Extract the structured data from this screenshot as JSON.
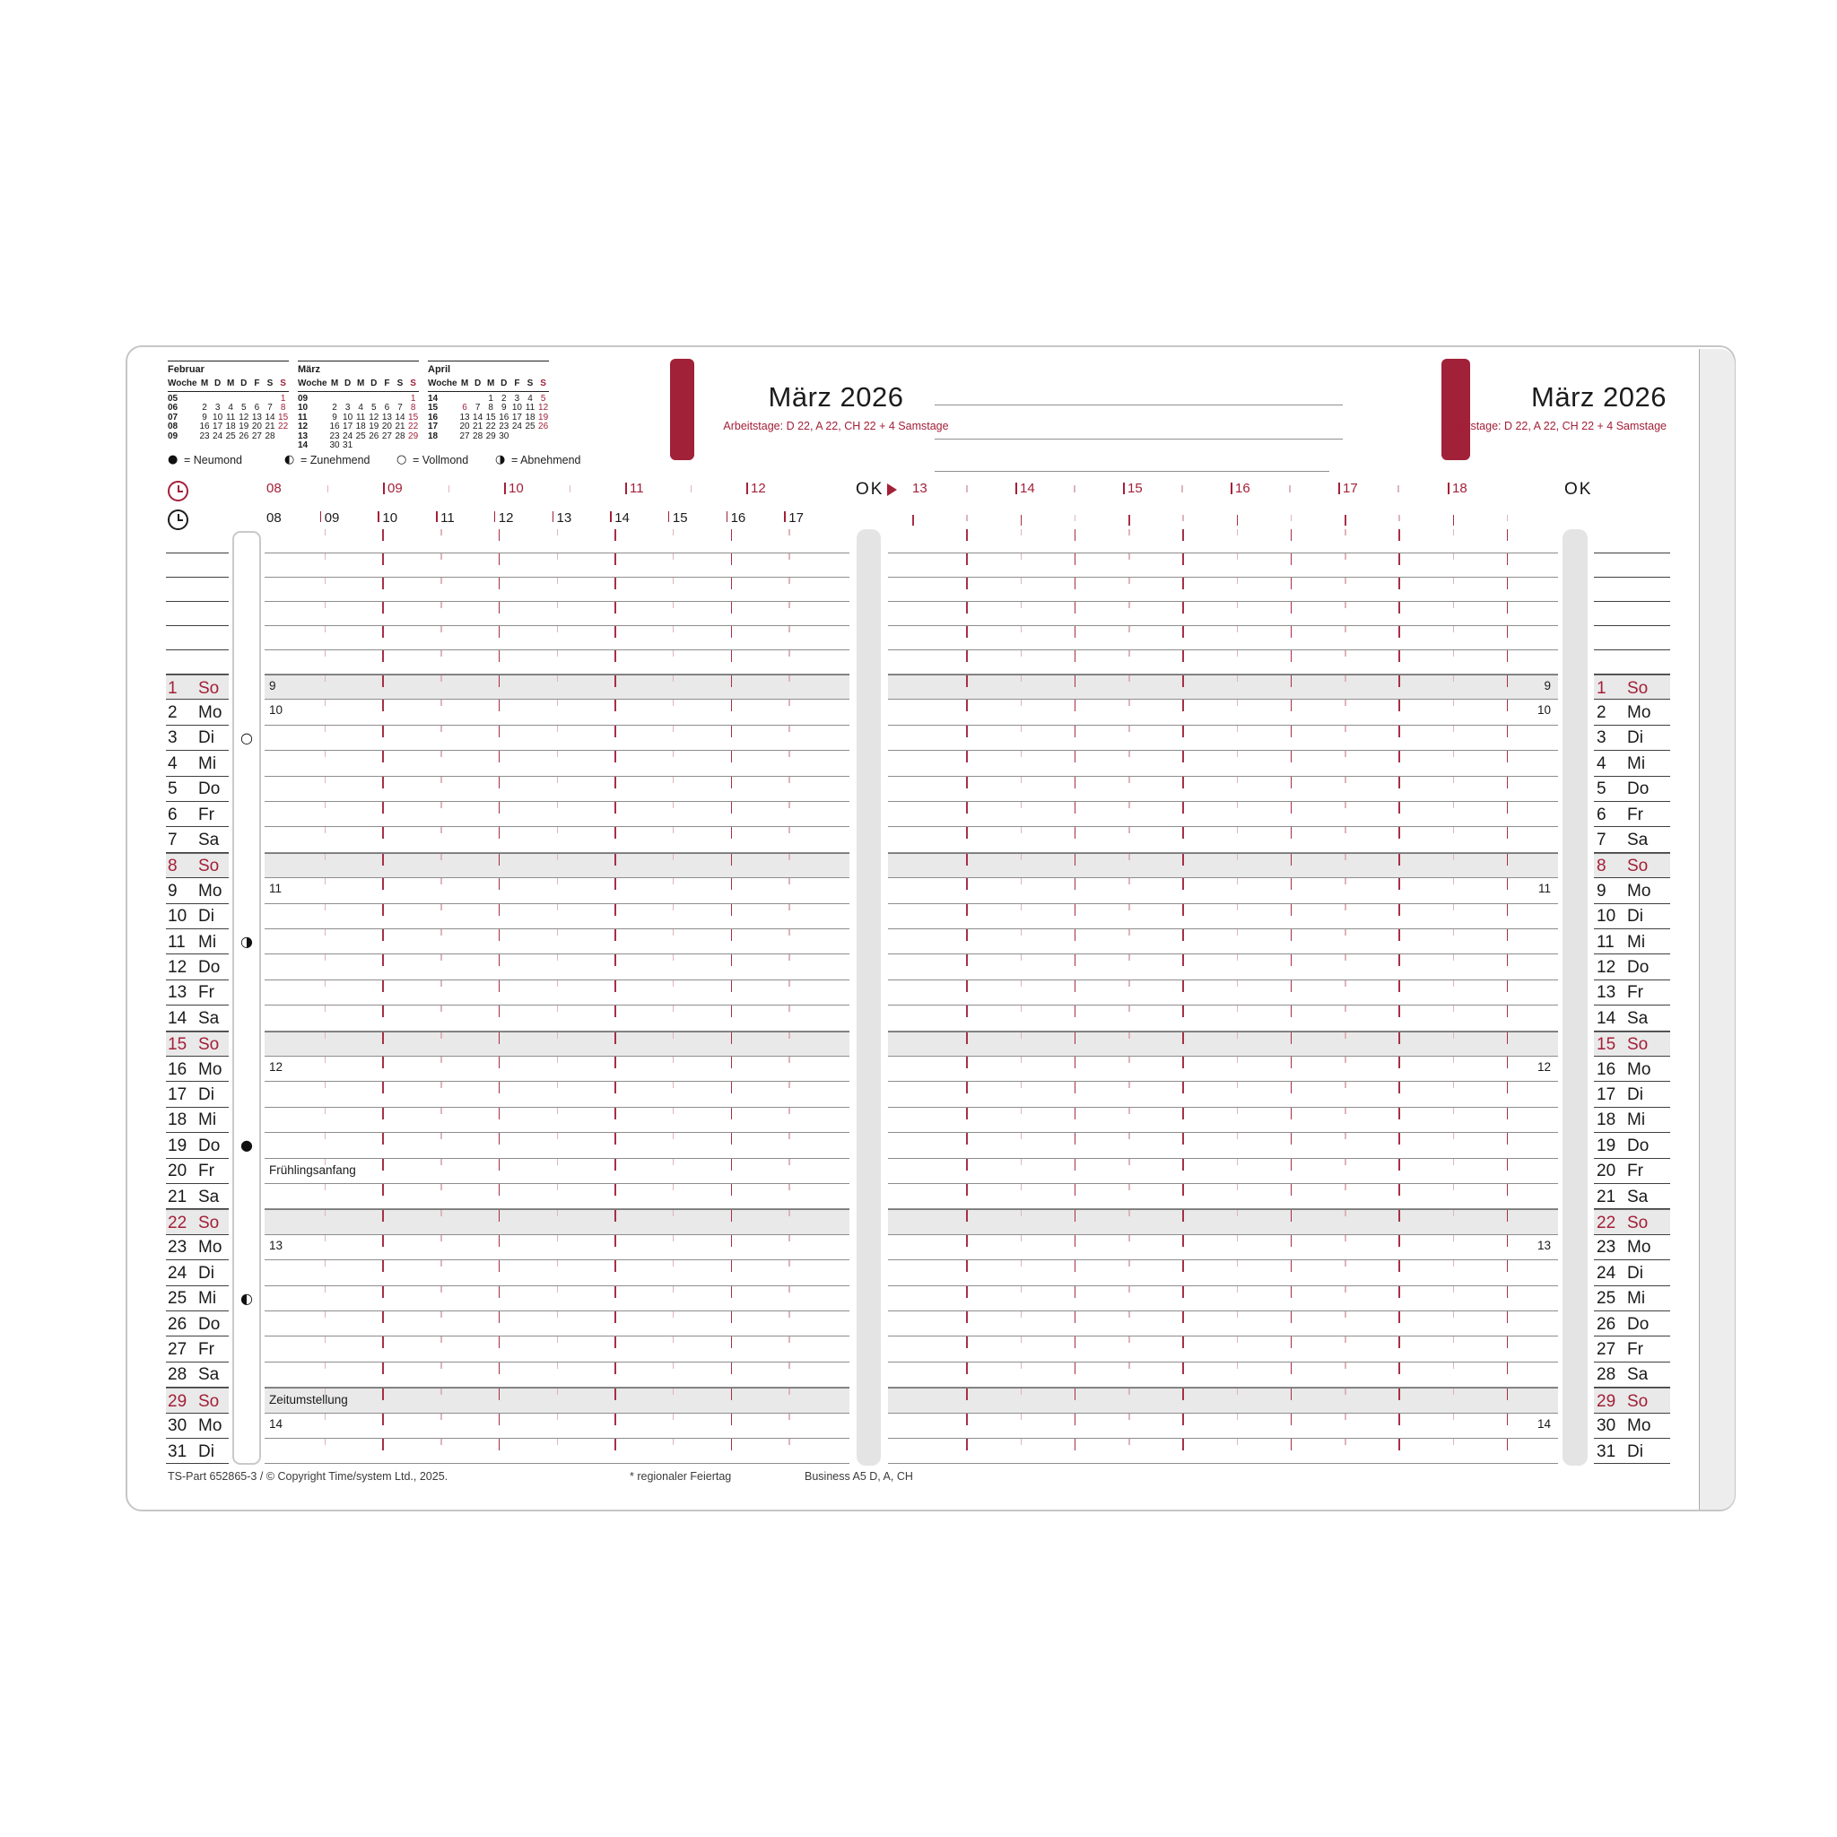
{
  "month_header": {
    "title": "März 2026",
    "subtitle": "Arbeitstage: D 22, A 22, CH 22 + 4 Samstage"
  },
  "mini_calendars": {
    "week_label": "Woche",
    "weekday_header": [
      "M",
      "D",
      "M",
      "D",
      "F",
      "S",
      "S"
    ],
    "months": [
      {
        "title": "Februar",
        "weeks": [
          {
            "num": "05",
            "days": [
              "",
              "",
              "",
              "",
              "",
              "",
              "1"
            ],
            "red": [
              6
            ]
          },
          {
            "num": "06",
            "days": [
              "2",
              "3",
              "4",
              "5",
              "6",
              "7",
              "8"
            ],
            "red": [
              6
            ]
          },
          {
            "num": "07",
            "days": [
              "9",
              "10",
              "11",
              "12",
              "13",
              "14",
              "15"
            ],
            "red": [
              6
            ]
          },
          {
            "num": "08",
            "days": [
              "16",
              "17",
              "18",
              "19",
              "20",
              "21",
              "22"
            ],
            "red": [
              6
            ]
          },
          {
            "num": "09",
            "days": [
              "23",
              "24",
              "25",
              "26",
              "27",
              "28",
              ""
            ],
            "red": []
          }
        ]
      },
      {
        "title": "März",
        "weeks": [
          {
            "num": "09",
            "days": [
              "",
              "",
              "",
              "",
              "",
              "",
              "1"
            ],
            "red": [
              6
            ]
          },
          {
            "num": "10",
            "days": [
              "2",
              "3",
              "4",
              "5",
              "6",
              "7",
              "8"
            ],
            "red": [
              6
            ]
          },
          {
            "num": "11",
            "days": [
              "9",
              "10",
              "11",
              "12",
              "13",
              "14",
              "15"
            ],
            "red": [
              6
            ]
          },
          {
            "num": "12",
            "days": [
              "16",
              "17",
              "18",
              "19",
              "20",
              "21",
              "22"
            ],
            "red": [
              6
            ]
          },
          {
            "num": "13",
            "days": [
              "23",
              "24",
              "25",
              "26",
              "27",
              "28",
              "29"
            ],
            "red": [
              6
            ]
          },
          {
            "num": "14",
            "days": [
              "30",
              "31",
              "",
              "",
              "",
              "",
              ""
            ],
            "red": []
          }
        ]
      },
      {
        "title": "April",
        "weeks": [
          {
            "num": "14",
            "days": [
              "",
              "",
              "1",
              "2",
              "3",
              "4",
              "5"
            ],
            "red": [
              6
            ]
          },
          {
            "num": "15",
            "days": [
              "6",
              "7",
              "8",
              "9",
              "10",
              "11",
              "12"
            ],
            "red": [
              0,
              6
            ]
          },
          {
            "num": "16",
            "days": [
              "13",
              "14",
              "15",
              "16",
              "17",
              "18",
              "19"
            ],
            "red": [
              6
            ]
          },
          {
            "num": "17",
            "days": [
              "20",
              "21",
              "22",
              "23",
              "24",
              "25",
              "26"
            ],
            "red": [
              6
            ]
          },
          {
            "num": "18",
            "days": [
              "27",
              "28",
              "29",
              "30",
              "",
              "",
              ""
            ],
            "red": []
          }
        ]
      }
    ]
  },
  "moon_legend": {
    "items": [
      {
        "symbol": "●",
        "label": "= Neumond"
      },
      {
        "symbol": "◐",
        "label": "= Zunehmend"
      },
      {
        "symbol": "○",
        "label": "= Vollmond"
      },
      {
        "symbol": "◑",
        "label": "= Abnehmend"
      }
    ]
  },
  "time_ruler": {
    "left_red_hours": [
      "08",
      "09",
      "10",
      "11",
      "12"
    ],
    "right_red_hours": [
      "13",
      "14",
      "15",
      "16",
      "17",
      "18"
    ],
    "black_hours": [
      "08",
      "09",
      "10",
      "11",
      "12",
      "13",
      "14",
      "15",
      "16",
      "17"
    ],
    "ok_label": "OK"
  },
  "calendar": {
    "moon_symbols": {
      "new": "●",
      "full": "○",
      "waxing": "◐",
      "waning": "◑"
    },
    "days": [
      {
        "date": 1,
        "day": "So",
        "sunday": true,
        "week": "9"
      },
      {
        "date": 2,
        "day": "Mo",
        "week": "10"
      },
      {
        "date": 3,
        "day": "Di",
        "moon": "full"
      },
      {
        "date": 4,
        "day": "Mi"
      },
      {
        "date": 5,
        "day": "Do"
      },
      {
        "date": 6,
        "day": "Fr"
      },
      {
        "date": 7,
        "day": "Sa"
      },
      {
        "date": 8,
        "day": "So",
        "sunday": true
      },
      {
        "date": 9,
        "day": "Mo",
        "week": "11"
      },
      {
        "date": 10,
        "day": "Di"
      },
      {
        "date": 11,
        "day": "Mi",
        "moon": "waning"
      },
      {
        "date": 12,
        "day": "Do"
      },
      {
        "date": 13,
        "day": "Fr"
      },
      {
        "date": 14,
        "day": "Sa"
      },
      {
        "date": 15,
        "day": "So",
        "sunday": true
      },
      {
        "date": 16,
        "day": "Mo",
        "week": "12"
      },
      {
        "date": 17,
        "day": "Di"
      },
      {
        "date": 18,
        "day": "Mi"
      },
      {
        "date": 19,
        "day": "Do",
        "moon": "new"
      },
      {
        "date": 20,
        "day": "Fr",
        "note": "Frühlingsanfang"
      },
      {
        "date": 21,
        "day": "Sa"
      },
      {
        "date": 22,
        "day": "So",
        "sunday": true
      },
      {
        "date": 23,
        "day": "Mo",
        "week": "13"
      },
      {
        "date": 24,
        "day": "Di"
      },
      {
        "date": 25,
        "day": "Mi",
        "moon": "waxing"
      },
      {
        "date": 26,
        "day": "Do"
      },
      {
        "date": 27,
        "day": "Fr"
      },
      {
        "date": 28,
        "day": "Sa"
      },
      {
        "date": 29,
        "day": "So",
        "sunday": true,
        "note": "Zeitumstellung"
      },
      {
        "date": 30,
        "day": "Mo",
        "week": "14"
      },
      {
        "date": 31,
        "day": "Di"
      }
    ]
  },
  "footer": {
    "part": "TS-Part 652865-3 / © Copyright Time/system Ltd., 2025.",
    "regional": "* regionaler Feiertag",
    "edition": "Business A5 D, A, CH"
  },
  "colors": {
    "accent_red": "#a32038",
    "tab_red": "#a02138",
    "shade": "#e9e9e9",
    "strip": "#e4e4e4",
    "tick_dark": "#a63046",
    "tick_light": "#dfb4ba"
  }
}
